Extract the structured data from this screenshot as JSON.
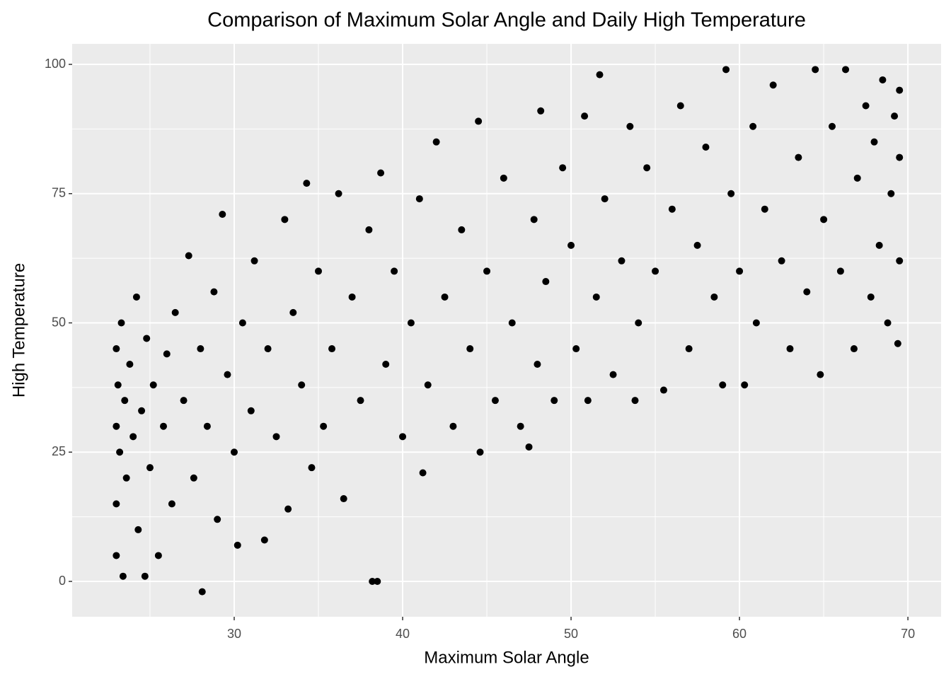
{
  "chart_data": {
    "type": "scatter",
    "title": "Comparison of Maximum Solar Angle and Daily High Temperature",
    "x_label": "Maximum Solar Angle",
    "y_label": "High Temperature",
    "color": "#000000",
    "grid": true,
    "xlim": [
      20.38,
      71.97
    ],
    "xticks": [
      30,
      40,
      50,
      60,
      70
    ],
    "ylim": [
      -6.84,
      103.97
    ],
    "yticks": [
      0,
      25,
      50,
      75,
      100
    ],
    "x": [
      23.0,
      23.0,
      23.0,
      23.0,
      23.1,
      23.2,
      23.3,
      23.4,
      23.5,
      23.6,
      23.8,
      24.0,
      24.2,
      24.3,
      24.5,
      24.7,
      24.8,
      25.0,
      25.2,
      25.5,
      25.8,
      26.0,
      26.3,
      26.5,
      27.0,
      27.3,
      27.6,
      28.0,
      28.1,
      28.4,
      28.8,
      29.0,
      29.3,
      29.6,
      30.0,
      30.2,
      30.5,
      31.0,
      31.2,
      31.8,
      32.0,
      32.5,
      33.0,
      33.2,
      33.5,
      34.0,
      34.3,
      34.6,
      35.0,
      35.3,
      35.8,
      36.2,
      36.5,
      37.0,
      37.5,
      38.0,
      38.2,
      38.5,
      38.7,
      39.0,
      39.5,
      40.0,
      40.5,
      41.0,
      41.2,
      41.5,
      42.0,
      42.5,
      43.0,
      43.5,
      44.0,
      44.5,
      44.6,
      45.0,
      45.5,
      46.0,
      46.5,
      47.0,
      47.5,
      47.8,
      48.0,
      48.2,
      48.5,
      49.0,
      49.5,
      50.0,
      50.3,
      50.8,
      51.0,
      51.5,
      51.7,
      52.0,
      52.5,
      53.0,
      53.5,
      53.8,
      54.0,
      54.5,
      55.0,
      55.5,
      56.0,
      56.5,
      57.0,
      57.5,
      58.0,
      58.5,
      59.0,
      59.2,
      59.5,
      60.0,
      60.3,
      60.8,
      61.0,
      61.5,
      62.0,
      62.5,
      63.0,
      63.5,
      64.0,
      64.5,
      64.8,
      65.0,
      65.5,
      66.0,
      66.3,
      66.8,
      67.0,
      67.5,
      67.8,
      68.0,
      68.3,
      68.5,
      68.8,
      69.0,
      69.2,
      69.4,
      69.5,
      69.5,
      69.5
    ],
    "y": [
      30,
      45,
      15,
      5,
      38,
      25,
      50,
      1,
      35,
      20,
      42,
      28,
      55,
      10,
      33,
      1,
      47,
      22,
      38,
      5,
      30,
      44,
      15,
      52,
      35,
      63,
      20,
      45,
      -2,
      30,
      56,
      12,
      71,
      40,
      25,
      7,
      50,
      33,
      62,
      8,
      45,
      28,
      70,
      14,
      52,
      38,
      77,
      22,
      60,
      30,
      45,
      75,
      16,
      55,
      35,
      68,
      0,
      0,
      79,
      42,
      60,
      28,
      50,
      74,
      21,
      38,
      85,
      55,
      30,
      68,
      45,
      89,
      25,
      60,
      35,
      78,
      50,
      30,
      26,
      70,
      42,
      91,
      58,
      35,
      80,
      65,
      45,
      90,
      35,
      55,
      98,
      74,
      40,
      62,
      88,
      35,
      50,
      80,
      60,
      37,
      72,
      92,
      45,
      65,
      84,
      55,
      38,
      99,
      75,
      60,
      38,
      88,
      50,
      72,
      96,
      62,
      45,
      82,
      56,
      99,
      40,
      70,
      88,
      60,
      99,
      45,
      78,
      92,
      55,
      85,
      65,
      97,
      50,
      75,
      90,
      46,
      62,
      82,
      95
    ]
  }
}
